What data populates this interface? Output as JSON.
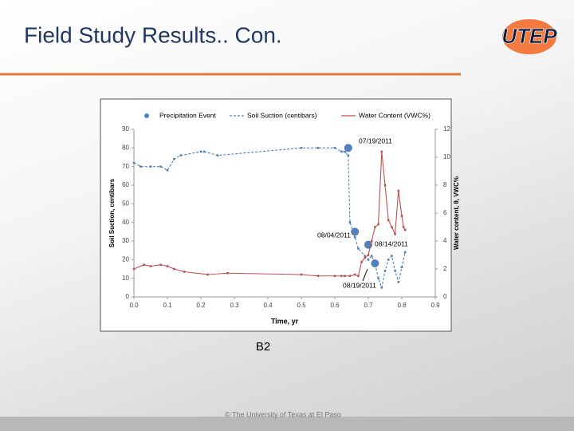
{
  "slide_title": "Field Study Results.. Con.",
  "logo": "UTEP",
  "caption": "B2",
  "footer": "© The University of Texas at El Paso",
  "chart_data": {
    "type": "line",
    "xlabel": "Time, yr",
    "ylabel": "Soil Suction, centibars",
    "y2label": "Water content, θ, VWC%",
    "xlim": [
      0,
      0.9
    ],
    "xticks": [
      {
        "value": 0,
        "label": "0.0"
      },
      0.1,
      0.2,
      0.3,
      0.4,
      0.5,
      0.6,
      0.7,
      0.8,
      0.9
    ],
    "ylim": [
      0,
      90
    ],
    "yticks": [
      0,
      10,
      20,
      30,
      40,
      50,
      60,
      70,
      80,
      90
    ],
    "y2lim": [
      0,
      12
    ],
    "y2ticks": [
      0,
      2,
      4,
      6,
      8,
      10,
      12
    ],
    "legend": "top",
    "series": [
      {
        "name": "Precipitation Event",
        "color": "#4f81bd",
        "style": "markers",
        "x": [
          0.64,
          0.66,
          0.7,
          0.72
        ],
        "values": [
          80,
          35,
          28,
          18
        ]
      },
      {
        "name": "Soil Suction (centibars)",
        "color": "#4f81bd",
        "style": "dashed",
        "x": [
          0.0,
          0.02,
          0.05,
          0.08,
          0.1,
          0.12,
          0.14,
          0.2,
          0.21,
          0.25,
          0.5,
          0.55,
          0.6,
          0.62,
          0.63,
          0.64,
          0.645,
          0.655,
          0.66,
          0.67,
          0.69,
          0.7,
          0.71,
          0.72,
          0.73,
          0.74,
          0.75,
          0.76,
          0.77,
          0.78,
          0.79,
          0.8,
          0.81
        ],
        "values": [
          72,
          70,
          70,
          70,
          68,
          74,
          76,
          78,
          78,
          76,
          80,
          80,
          80,
          78,
          78,
          76,
          40,
          35,
          32,
          26,
          22,
          20,
          22,
          18,
          10,
          5,
          14,
          20,
          22,
          14,
          8,
          16,
          24
        ]
      },
      {
        "name": "Water Content (VWC%)",
        "color": "#c0504d",
        "style": "solid",
        "axis": "y2",
        "x": [
          0.0,
          0.03,
          0.05,
          0.08,
          0.1,
          0.12,
          0.15,
          0.22,
          0.28,
          0.5,
          0.55,
          0.6,
          0.62,
          0.63,
          0.645,
          0.66,
          0.67,
          0.68,
          0.69,
          0.7,
          0.71,
          0.72,
          0.73,
          0.74,
          0.75,
          0.76,
          0.77,
          0.78,
          0.79,
          0.8,
          0.805,
          0.81
        ],
        "values": [
          2.0,
          2.3,
          2.2,
          2.3,
          2.2,
          2.0,
          1.8,
          1.6,
          1.7,
          1.6,
          1.5,
          1.5,
          1.5,
          1.5,
          1.5,
          1.6,
          1.5,
          2.5,
          2.8,
          3.0,
          4.0,
          5.0,
          5.2,
          10.4,
          8.0,
          5.5,
          5.0,
          4.5,
          7.6,
          5.8,
          5.0,
          4.8
        ]
      }
    ],
    "annotations": [
      "07/19/2011",
      "08/04/2011",
      "08/14/2011",
      "08/19/2011"
    ]
  }
}
